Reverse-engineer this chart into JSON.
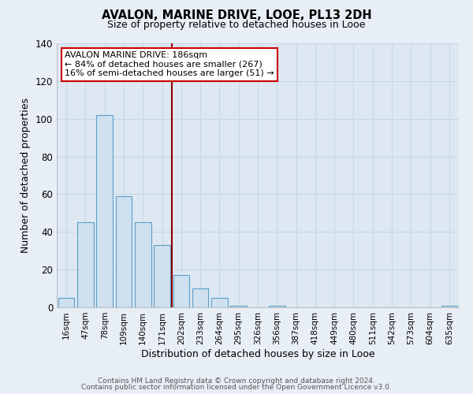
{
  "title_line1": "AVALON, MARINE DRIVE, LOOE, PL13 2DH",
  "title_line2": "Size of property relative to detached houses in Looe",
  "xlabel": "Distribution of detached houses by size in Looe",
  "ylabel": "Number of detached properties",
  "bar_labels": [
    "16sqm",
    "47sqm",
    "78sqm",
    "109sqm",
    "140sqm",
    "171sqm",
    "202sqm",
    "233sqm",
    "264sqm",
    "295sqm",
    "326sqm",
    "356sqm",
    "387sqm",
    "418sqm",
    "449sqm",
    "480sqm",
    "511sqm",
    "542sqm",
    "573sqm",
    "604sqm",
    "635sqm"
  ],
  "bar_heights": [
    5,
    45,
    102,
    59,
    45,
    33,
    17,
    10,
    5,
    1,
    0,
    1,
    0,
    0,
    0,
    0,
    0,
    0,
    0,
    0,
    1
  ],
  "bar_color": "#cfe0ef",
  "bar_edge_color": "#5b9fc9",
  "ylim": [
    0,
    140
  ],
  "yticks": [
    0,
    20,
    40,
    60,
    80,
    100,
    120,
    140
  ],
  "vline_x": 5.5,
  "vline_color": "#8b0000",
  "annotation_title": "AVALON MARINE DRIVE: 186sqm",
  "annotation_line1": "← 84% of detached houses are smaller (267)",
  "annotation_line2": "16% of semi-detached houses are larger (51) →",
  "annotation_box_color": "#ffffff",
  "annotation_box_edge": "#cc0000",
  "footer_line1": "Contains HM Land Registry data © Crown copyright and database right 2024.",
  "footer_line2": "Contains public sector information licensed under the Open Government Licence v3.0.",
  "background_color": "#e8eef5",
  "grid_color": "#c8d8e8",
  "plot_bg_color": "#dde8f2"
}
